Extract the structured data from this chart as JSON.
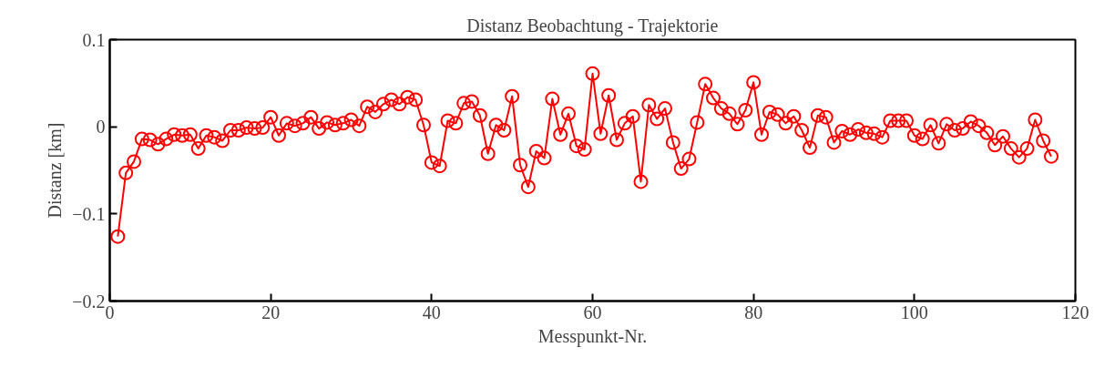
{
  "chart_data": {
    "type": "line",
    "title": "Distanz Beobachtung - Trajektorie",
    "xlabel": "Messpunkt-Nr.",
    "ylabel": "Distanz [km]",
    "x": [
      1,
      2,
      3,
      4,
      5,
      6,
      7,
      8,
      9,
      10,
      11,
      12,
      13,
      14,
      15,
      16,
      17,
      18,
      19,
      20,
      21,
      22,
      23,
      24,
      25,
      26,
      27,
      28,
      29,
      30,
      31,
      32,
      33,
      34,
      35,
      36,
      37,
      38,
      39,
      40,
      41,
      42,
      43,
      44,
      45,
      46,
      47,
      48,
      49,
      50,
      51,
      52,
      53,
      54,
      55,
      56,
      57,
      58,
      59,
      60,
      61,
      62,
      63,
      64,
      65,
      66,
      67,
      68,
      69,
      70,
      71,
      72,
      73,
      74,
      75,
      76,
      77,
      78,
      79,
      80,
      81,
      82,
      83,
      84,
      85,
      86,
      87,
      88,
      89,
      90,
      91,
      92,
      93,
      94,
      95,
      96,
      97,
      98,
      99,
      100,
      101,
      102,
      103,
      104,
      105,
      106,
      107,
      108,
      109,
      110,
      111,
      112,
      113,
      114,
      115,
      116,
      117
    ],
    "series": [
      {
        "color": "#ff0000",
        "values": [
          -0.126,
          -0.053,
          -0.04,
          -0.014,
          -0.015,
          -0.02,
          -0.014,
          -0.009,
          -0.01,
          -0.009,
          -0.025,
          -0.01,
          -0.012,
          -0.016,
          -0.004,
          -0.004,
          -0.001,
          -0.002,
          -0.001,
          0.011,
          -0.01,
          0.004,
          0.001,
          0.004,
          0.011,
          -0.002,
          0.005,
          0.002,
          0.004,
          0.008,
          0.001,
          0.023,
          0.017,
          0.026,
          0.031,
          0.026,
          0.034,
          0.031,
          0.002,
          -0.041,
          -0.045,
          0.007,
          0.004,
          0.027,
          0.029,
          0.013,
          -0.031,
          0.002,
          -0.004,
          0.035,
          -0.044,
          -0.069,
          -0.028,
          -0.036,
          0.032,
          -0.009,
          0.015,
          -0.022,
          -0.026,
          0.061,
          -0.008,
          0.036,
          -0.015,
          0.004,
          0.012,
          -0.063,
          0.025,
          0.009,
          0.021,
          -0.018,
          -0.048,
          -0.037,
          0.005,
          0.049,
          0.033,
          0.021,
          0.015,
          0.003,
          0.019,
          0.051,
          -0.009,
          0.017,
          0.014,
          0.004,
          0.012,
          -0.004,
          -0.024,
          0.013,
          0.011,
          -0.018,
          -0.005,
          -0.009,
          -0.003,
          -0.007,
          -0.008,
          -0.012,
          0.007,
          0.007,
          0.007,
          -0.01,
          -0.014,
          0.002,
          -0.019,
          0.003,
          -0.004,
          -0.002,
          0.006,
          0.001,
          -0.007,
          -0.021,
          -0.011,
          -0.025,
          -0.035,
          -0.025,
          0.008,
          -0.016,
          -0.034
        ]
      }
    ],
    "xlim": [
      0,
      120
    ],
    "ylim": [
      -0.2,
      0.1
    ],
    "xticks": [
      0,
      20,
      40,
      60,
      80,
      100,
      120
    ],
    "yticks": [
      {
        "value": -0.2,
        "label": "−0.2"
      },
      {
        "value": -0.1,
        "label": "−0.1"
      },
      0,
      0.1
    ],
    "marker": "circle",
    "line_style": "solid"
  }
}
